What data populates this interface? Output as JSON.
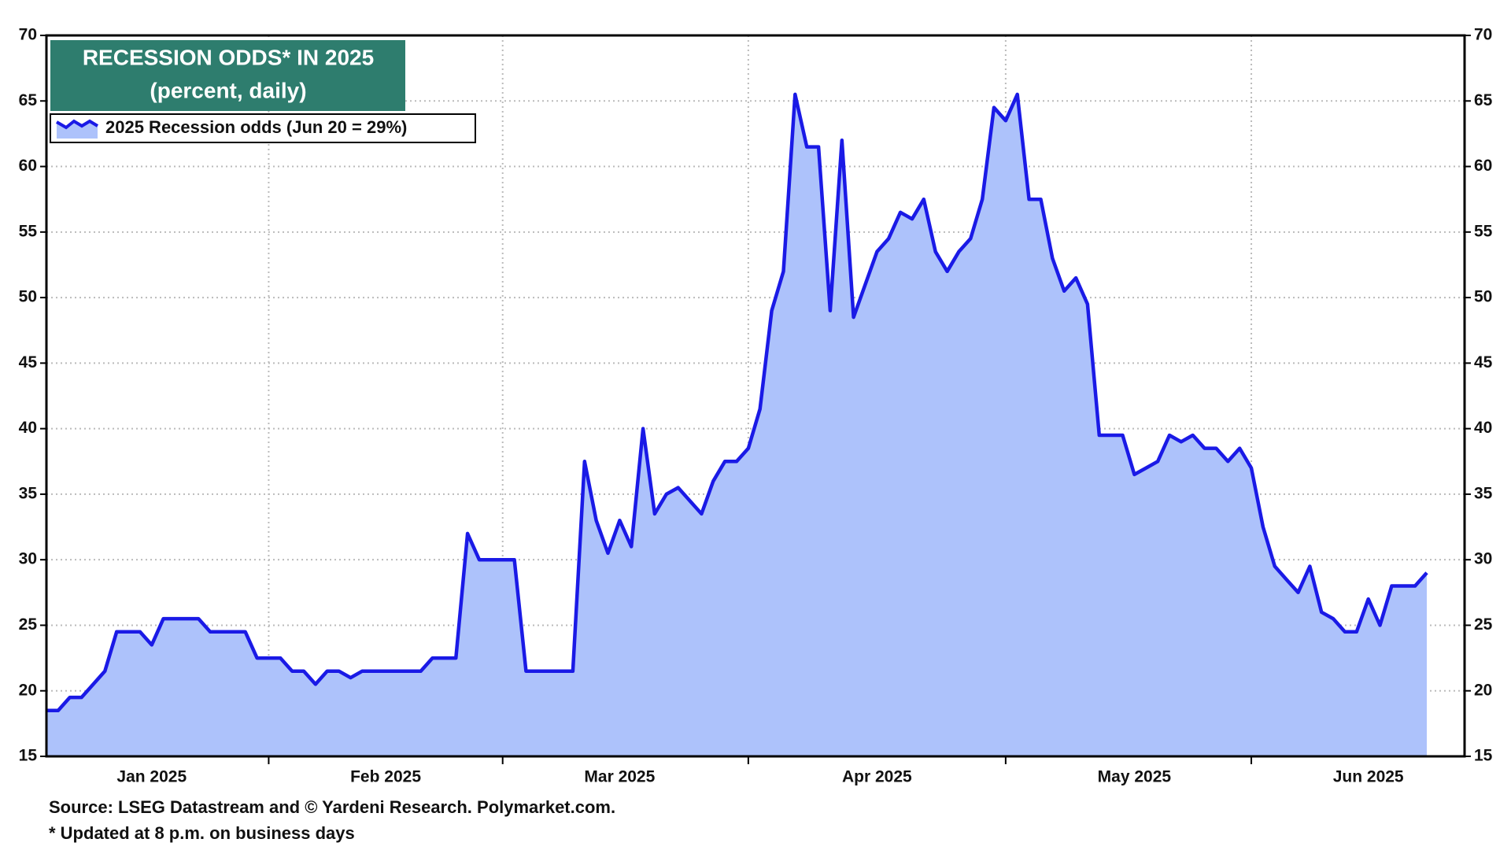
{
  "chart_data": {
    "type": "area",
    "title": "RECESSION ODDS* IN 2025",
    "subtitle": "(percent, daily)",
    "source": "Source: LSEG Datastream and © Yardeni Research. Polymarket.com.",
    "note": "* Updated at 8 p.m. on business days",
    "categories": [
      null,
      null,
      null,
      null,
      null,
      null,
      null,
      null,
      null,
      "Jan 2025",
      null,
      null,
      null,
      null,
      null,
      null,
      null,
      null,
      null,
      null,
      null,
      null,
      null,
      null,
      null,
      null,
      null,
      null,
      null,
      "Feb 2025",
      null,
      null,
      null,
      null,
      null,
      null,
      null,
      null,
      null,
      null,
      null,
      null,
      null,
      null,
      null,
      null,
      null,
      null,
      null,
      "Mar 2025",
      null,
      null,
      null,
      null,
      null,
      null,
      null,
      null,
      null,
      null,
      null,
      null,
      null,
      null,
      null,
      null,
      null,
      null,
      null,
      null,
      null,
      "Apr 2025",
      null,
      null,
      null,
      null,
      null,
      null,
      null,
      null,
      null,
      null,
      null,
      null,
      null,
      null,
      null,
      null,
      null,
      null,
      null,
      null,
      null,
      "May 2025",
      null,
      null,
      null,
      null,
      null,
      null,
      null,
      null,
      null,
      null,
      null,
      null,
      null,
      null,
      null,
      null,
      null,
      null,
      null,
      "Jun 2025",
      null,
      null,
      null,
      null,
      null
    ],
    "series": [
      {
        "name": "2025 Recession odds (Jun 20 = 29%)",
        "color": "#1a1ae6",
        "fill": "#adc2fb",
        "values": [
          18.5,
          18.5,
          19.5,
          19.5,
          20.5,
          21.5,
          24.5,
          24.5,
          24.5,
          23.5,
          25.5,
          25.5,
          25.5,
          25.5,
          24.5,
          24.5,
          24.5,
          24.5,
          22.5,
          22.5,
          22.5,
          21.5,
          21.5,
          20.5,
          21.5,
          21.5,
          21,
          21.5,
          21.5,
          21.5,
          21.5,
          21.5,
          21.5,
          22.5,
          22.5,
          22.5,
          32,
          30,
          30,
          30,
          30,
          21.5,
          21.5,
          21.5,
          21.5,
          21.5,
          37.5,
          33,
          30.5,
          33,
          31,
          40,
          33.5,
          35,
          35.5,
          34.5,
          33.5,
          36,
          37.5,
          37.5,
          38.5,
          41.5,
          49,
          52,
          65.5,
          61.5,
          61.5,
          49,
          62,
          48.5,
          51,
          53.5,
          54.5,
          56.5,
          56,
          57.5,
          53.5,
          52,
          53.5,
          54.5,
          57.5,
          64.5,
          63.5,
          65.5,
          57.5,
          57.5,
          53,
          50.5,
          51.5,
          49.5,
          39.5,
          39.5,
          39.5,
          36.5,
          37,
          37.5,
          39.5,
          39,
          39.5,
          38.5,
          38.5,
          37.5,
          38.5,
          37,
          32.5,
          29.5,
          28.5,
          27.5,
          29.5,
          26,
          25.5,
          24.5,
          24.5,
          27,
          25,
          28,
          28,
          28,
          29
        ]
      }
    ],
    "ylim": [
      15,
      70
    ],
    "yticks": [
      15,
      20,
      25,
      30,
      35,
      40,
      45,
      50,
      55,
      60,
      65,
      70
    ],
    "grid": true,
    "title_color": "#2e7d6e",
    "legend": "upper left"
  }
}
